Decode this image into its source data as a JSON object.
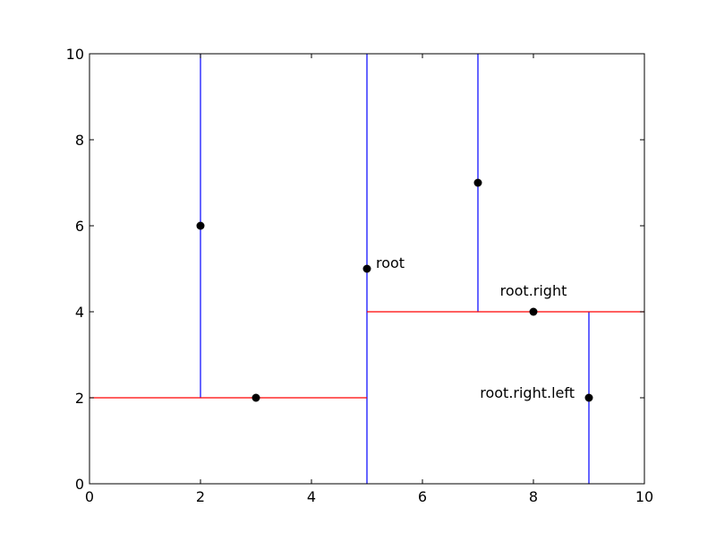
{
  "chart_data": {
    "type": "scatter",
    "title": "",
    "xlabel": "",
    "ylabel": "",
    "xlim": [
      0,
      10
    ],
    "ylim": [
      0,
      10
    ],
    "xticks": [
      "0",
      "2",
      "4",
      "6",
      "8",
      "10"
    ],
    "yticks": [
      "0",
      "2",
      "4",
      "6",
      "8",
      "10"
    ],
    "grid": false,
    "points": [
      {
        "x": 2,
        "y": 6
      },
      {
        "x": 3,
        "y": 2
      },
      {
        "x": 5,
        "y": 5
      },
      {
        "x": 7,
        "y": 7
      },
      {
        "x": 8,
        "y": 4
      },
      {
        "x": 9,
        "y": 2
      }
    ],
    "point_color": "#000000",
    "vertical_splits": [
      {
        "x": 5,
        "y_range": [
          0,
          10
        ]
      },
      {
        "x": 2,
        "y_range": [
          2,
          10
        ]
      },
      {
        "x": 7,
        "y_range": [
          4,
          10
        ]
      },
      {
        "x": 9,
        "y_range": [
          0,
          4
        ]
      }
    ],
    "horizontal_splits": [
      {
        "y": 2,
        "x_range": [
          0,
          5
        ]
      },
      {
        "y": 4,
        "x_range": [
          5,
          10
        ]
      }
    ],
    "vertical_color": "#0000ff",
    "horizontal_color": "#ff0000",
    "annotations": [
      {
        "text": "root",
        "x": 5,
        "y": 5
      },
      {
        "text": "root.right",
        "x": 8,
        "y": 4
      },
      {
        "text": "root.right.left",
        "x": 9,
        "y": 2
      }
    ]
  }
}
